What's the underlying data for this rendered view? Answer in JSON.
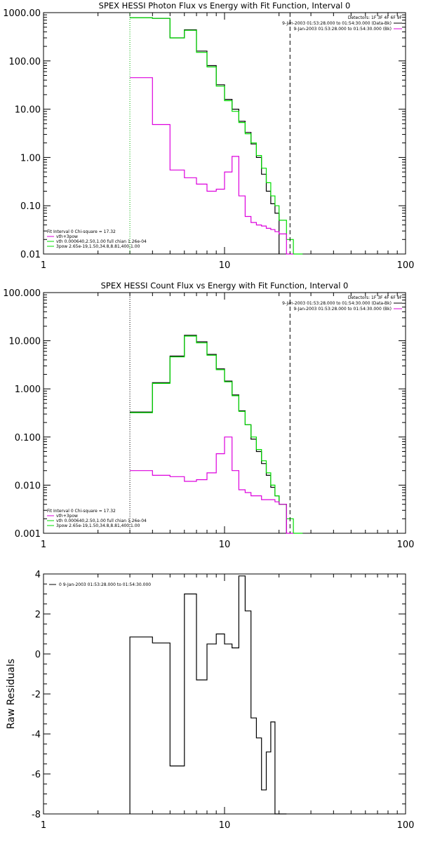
{
  "chart_data": [
    {
      "type": "line",
      "panel": "photon",
      "title": "SPEX HESSI Photon Flux vs Energy with Fit Function, Interval 0",
      "xlabel": "",
      "ylabel": "",
      "x_scale": "log",
      "y_scale": "log",
      "xlim": [
        1,
        100
      ],
      "ylim": [
        0.01,
        1000
      ],
      "x_ticks": [
        1,
        10,
        100
      ],
      "x_tick_labels": [
        "1",
        "10",
        "100"
      ],
      "y_ticks": [
        0.01,
        0.1,
        1,
        10,
        100,
        1000
      ],
      "y_tick_labels": [
        "0.01",
        "0.10",
        "1.00",
        "10.00",
        "100.00",
        "1000.00"
      ],
      "bin_edges": [
        3.0,
        4.0,
        5.0,
        6.0,
        7.0,
        8.0,
        9.0,
        10.0,
        11.0,
        12.0,
        13.0,
        14.0,
        15.0,
        16.0,
        17.0,
        18.0,
        19.0,
        20.0,
        22.0,
        24.0,
        27.0
      ],
      "vlines": [
        {
          "x": 3.0,
          "style": "dotted",
          "color": "#00b000"
        },
        {
          "x": 23.0,
          "style": "dashed",
          "color": "#000000"
        }
      ],
      "series": [
        {
          "role": "data",
          "color": "#000000",
          "values": [
            780,
            760,
            300,
            440,
            160,
            80,
            32,
            16,
            10,
            5.6,
            3.3,
            1.9,
            1.0,
            0.45,
            0.2,
            0.11,
            0.07,
            null,
            null,
            null
          ]
        },
        {
          "role": "fit_total",
          "color": "#00dd00",
          "values": [
            780,
            760,
            300,
            430,
            150,
            75,
            30,
            15,
            9,
            5.3,
            3.1,
            2.0,
            1.1,
            0.6,
            0.3,
            0.16,
            0.1,
            0.05,
            0.02,
            0.006
          ]
        },
        {
          "role": "fit_component",
          "color": "#dd00dd",
          "values": [
            45,
            4.8,
            0.55,
            0.38,
            0.28,
            0.2,
            0.22,
            0.5,
            1.05,
            0.16,
            0.06,
            0.045,
            0.04,
            0.038,
            0.034,
            0.032,
            0.029,
            0.026,
            0.005,
            null
          ]
        }
      ],
      "header": {
        "detectors": "Detectors: 1F 3F 4F 6F 9F",
        "line1": "9-Jan-2003 01:53:28.000 to 01:54:30.000 (Data-Bk)",
        "line2": "9-Jan-2003 01:53:28.000 to 01:54:30.000 (Bk)"
      },
      "legend": {
        "placement": "bottom-left",
        "title": "Fit Interval 0   Chi-square = 17.32",
        "entries": [
          {
            "label": "vth+3pow",
            "color": "#dd00dd"
          },
          {
            "label": "vth 0.000640,2.50,1.00  full chian 1.26e-04",
            "color": "#00dd00"
          },
          {
            "label": "3pow 2.65e-19,1.50,34.8,8.81,400,1.00",
            "color": "#00dd00"
          }
        ]
      }
    },
    {
      "type": "line",
      "panel": "count",
      "title": "SPEX HESSI Count Flux vs Energy with Fit Function, Interval 0",
      "xlabel": "",
      "ylabel": "",
      "x_scale": "log",
      "y_scale": "log",
      "xlim": [
        1,
        100
      ],
      "ylim": [
        0.001,
        100
      ],
      "x_ticks": [
        1,
        10,
        100
      ],
      "x_tick_labels": [
        "1",
        "10",
        "100"
      ],
      "y_ticks": [
        0.001,
        0.01,
        0.1,
        1,
        10,
        100
      ],
      "y_tick_labels": [
        "0.001",
        "0.010",
        "0.100",
        "1.000",
        "10.000",
        "100.000"
      ],
      "bin_edges": [
        3.0,
        4.0,
        5.0,
        6.0,
        7.0,
        8.0,
        9.0,
        10.0,
        11.0,
        12.0,
        13.0,
        14.0,
        15.0,
        16.0,
        17.0,
        18.0,
        19.0,
        20.0,
        22.0,
        24.0,
        27.0
      ],
      "vlines": [
        {
          "x": 3.0,
          "style": "dotted",
          "color": "#000000"
        },
        {
          "x": 23.0,
          "style": "dashed",
          "color": "#000000"
        }
      ],
      "series": [
        {
          "role": "data",
          "color": "#000000",
          "values": [
            0.33,
            1.35,
            4.8,
            13,
            9.5,
            5.2,
            2.6,
            1.45,
            0.75,
            0.35,
            0.18,
            0.09,
            0.05,
            0.028,
            0.016,
            0.009,
            0.006,
            0.004,
            null,
            null
          ]
        },
        {
          "role": "fit_total",
          "color": "#00dd00",
          "values": [
            0.32,
            1.3,
            4.6,
            12.5,
            9.0,
            5.0,
            2.5,
            1.4,
            0.72,
            0.34,
            0.18,
            0.1,
            0.055,
            0.032,
            0.018,
            0.01,
            0.006,
            0.004,
            0.002,
            0.001
          ]
        },
        {
          "role": "fit_component",
          "color": "#dd00dd",
          "values": [
            0.02,
            0.016,
            0.015,
            0.012,
            0.013,
            0.018,
            0.045,
            0.1,
            0.02,
            0.008,
            0.007,
            0.006,
            0.006,
            0.005,
            0.005,
            0.005,
            0.0045,
            0.004,
            0.0009,
            null
          ]
        }
      ],
      "header": {
        "detectors": "Detectors: 1F 3F 4F 6F 9F",
        "line1": "9-Jan-2003 01:53:28.000 to 01:54:30.000 (Data-Bk)",
        "line2": "9-Jan-2003 01:53:28.000 to 01:54:30.000 (Bk)"
      },
      "legend": {
        "placement": "bottom-left",
        "title": "Fit Interval 0   Chi-square = 17.32",
        "entries": [
          {
            "label": "vth+3pow",
            "color": "#dd00dd"
          },
          {
            "label": "vth 0.000640,2.50,1.00  full chian 1.26e-04",
            "color": "#00dd00"
          },
          {
            "label": "3pow 2.65e-19,1.50,34.8,8.81,400,1.00",
            "color": "#00dd00"
          }
        ]
      }
    },
    {
      "type": "line",
      "panel": "residuals",
      "title": "",
      "xlabel": "",
      "ylabel": "Raw Residuals",
      "x_scale": "log",
      "y_scale": "linear",
      "xlim": [
        1,
        100
      ],
      "ylim": [
        -8,
        4
      ],
      "x_ticks": [
        1,
        10,
        100
      ],
      "x_tick_labels": [
        "1",
        "10",
        "100"
      ],
      "y_ticks": [
        -8,
        -6,
        -4,
        -2,
        0,
        2,
        4
      ],
      "y_tick_labels": [
        "-8",
        "-6",
        "-4",
        "-2",
        "0",
        "2",
        "4"
      ],
      "bin_edges": [
        3.0,
        4.0,
        5.0,
        6.0,
        7.0,
        8.0,
        9.0,
        10.0,
        11.0,
        12.0,
        13.0,
        14.0,
        15.0,
        16.0,
        17.0,
        18.0,
        19.0,
        20.0,
        22.0
      ],
      "series": [
        {
          "role": "residuals",
          "color": "#000000",
          "values": [
            0.85,
            0.55,
            -5.6,
            3.0,
            -1.3,
            0.5,
            1.0,
            0.5,
            0.3,
            3.9,
            2.15,
            -3.2,
            -4.2,
            -6.8,
            -4.9,
            -3.4,
            -8.0,
            -8.0
          ]
        }
      ],
      "legend": {
        "placement": "top-left",
        "entries": [
          {
            "label": "0  9-Jan-2003 01:53:28.000 to 01:54:30.000",
            "color": "#000000"
          }
        ]
      }
    }
  ]
}
